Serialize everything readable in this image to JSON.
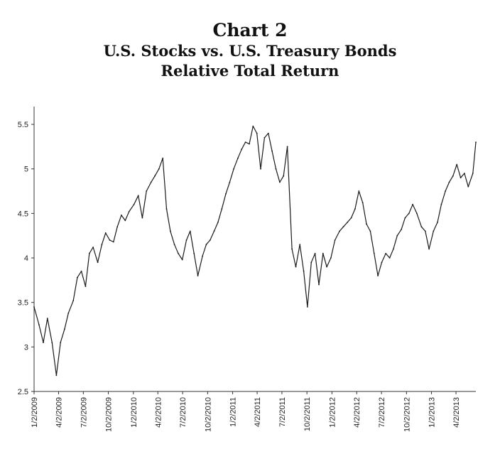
{
  "title": "Chart 2",
  "subtitle_lines": [
    "U.S. Stocks vs. U.S. Treasury Bonds",
    "Relative Total Return"
  ],
  "chart_data": {
    "type": "line",
    "title": "Chart 2",
    "subtitle": "U.S. Stocks vs. U.S. Treasury Bonds Relative Total Return",
    "xlabel": "",
    "ylabel": "",
    "ylim": [
      2.5,
      5.7
    ],
    "yticks": [
      2.5,
      3,
      3.5,
      4,
      4.5,
      5,
      5.5
    ],
    "ytick_labels": [
      "2.5",
      "3",
      "3.5",
      "4",
      "4.5",
      "5",
      "5.5"
    ],
    "xticks": [
      "1/2/2009",
      "4/2/2009",
      "7/2/2009",
      "10/2/2009",
      "1/2/2010",
      "4/2/2010",
      "7/2/2010",
      "10/2/2010",
      "1/2/2011",
      "4/2/2011",
      "7/2/2011",
      "10/2/2011",
      "1/2/2012",
      "4/2/2012",
      "7/2/2012",
      "10/2/2012",
      "1/2/2013",
      "4/2/2013"
    ],
    "xlim": [
      "1/2/2009",
      "6/14/2013"
    ],
    "grid": false,
    "line_color": "#1a1a1a",
    "series": [
      {
        "x": [
          "1/2/2009",
          "1/20/2009",
          "2/5/2009",
          "2/20/2009",
          "3/9/2009",
          "3/25/2009",
          "4/9/2009",
          "4/24/2009",
          "5/8/2009",
          "5/26/2009",
          "6/10/2009",
          "6/25/2009",
          "7/10/2009",
          "7/24/2009",
          "8/7/2009",
          "8/24/2009",
          "9/8/2009",
          "9/22/2009",
          "10/7/2009",
          "10/21/2009",
          "11/4/2009",
          "11/19/2009",
          "12/3/2009",
          "12/17/2009",
          "1/4/2010",
          "1/20/2010",
          "2/4/2010",
          "2/19/2010",
          "3/8/2010",
          "3/22/2010",
          "4/6/2010",
          "4/20/2010",
          "5/4/2010",
          "5/18/2010",
          "6/2/2010",
          "6/16/2010",
          "7/1/2010",
          "7/16/2010",
          "7/30/2010",
          "8/13/2010",
          "8/27/2010",
          "9/13/2010",
          "9/27/2010",
          "10/11/2010",
          "10/26/2010",
          "11/9/2010",
          "11/23/2010",
          "12/8/2010",
          "12/22/2010",
          "1/6/2011",
          "1/21/2011",
          "2/4/2011",
          "2/18/2011",
          "3/4/2011",
          "3/18/2011",
          "4/1/2011",
          "4/15/2011",
          "4/29/2011",
          "5/13/2011",
          "5/27/2011",
          "6/10/2011",
          "6/24/2011",
          "7/8/2011",
          "7/22/2011",
          "8/8/2011",
          "8/22/2011",
          "9/6/2011",
          "9/20/2011",
          "10/4/2011",
          "10/18/2011",
          "11/1/2011",
          "11/15/2011",
          "11/30/2011",
          "12/14/2011",
          "12/29/2011",
          "1/13/2012",
          "1/30/2012",
          "2/13/2012",
          "2/28/2012",
          "3/13/2012",
          "3/27/2012",
          "4/10/2012",
          "4/24/2012",
          "5/8/2012",
          "5/22/2012",
          "6/5/2012",
          "6/19/2012",
          "7/3/2012",
          "7/18/2012",
          "8/1/2012",
          "8/15/2012",
          "8/29/2012",
          "9/13/2012",
          "9/27/2012",
          "10/11/2012",
          "10/25/2012",
          "11/9/2012",
          "11/26/2012",
          "12/10/2012",
          "12/24/2012",
          "1/9/2013",
          "1/24/2013",
          "2/7/2013",
          "2/22/2013",
          "3/8/2013",
          "3/22/2013",
          "4/5/2013",
          "4/19/2013",
          "5/3/2013",
          "5/17/2013",
          "6/3/2013",
          "6/14/2013"
        ],
        "values": [
          3.45,
          3.25,
          3.05,
          3.32,
          3.05,
          2.68,
          3.05,
          3.2,
          3.38,
          3.52,
          3.78,
          3.85,
          3.68,
          4.05,
          4.12,
          3.95,
          4.15,
          4.28,
          4.2,
          4.18,
          4.35,
          4.48,
          4.42,
          4.52,
          4.6,
          4.7,
          4.45,
          4.75,
          4.85,
          4.92,
          5.0,
          5.12,
          4.55,
          4.3,
          4.15,
          4.05,
          3.98,
          4.2,
          4.3,
          4.05,
          3.8,
          4.02,
          4.15,
          4.2,
          4.3,
          4.4,
          4.55,
          4.72,
          4.85,
          5.0,
          5.12,
          5.22,
          5.3,
          5.28,
          5.48,
          5.4,
          5.0,
          5.35,
          5.4,
          5.2,
          5.0,
          4.85,
          4.92,
          5.25,
          4.1,
          3.9,
          4.15,
          3.85,
          3.45,
          3.95,
          4.05,
          3.7,
          4.05,
          3.9,
          4.0,
          4.2,
          4.3,
          4.35,
          4.4,
          4.45,
          4.55,
          4.75,
          4.62,
          4.38,
          4.3,
          4.05,
          3.8,
          3.95,
          4.05,
          4.0,
          4.1,
          4.25,
          4.32,
          4.45,
          4.5,
          4.6,
          4.5,
          4.35,
          4.3,
          4.1,
          4.3,
          4.4,
          4.6,
          4.75,
          4.85,
          4.92,
          5.05,
          4.9,
          4.95,
          4.8,
          4.95,
          5.3
        ]
      }
    ]
  }
}
